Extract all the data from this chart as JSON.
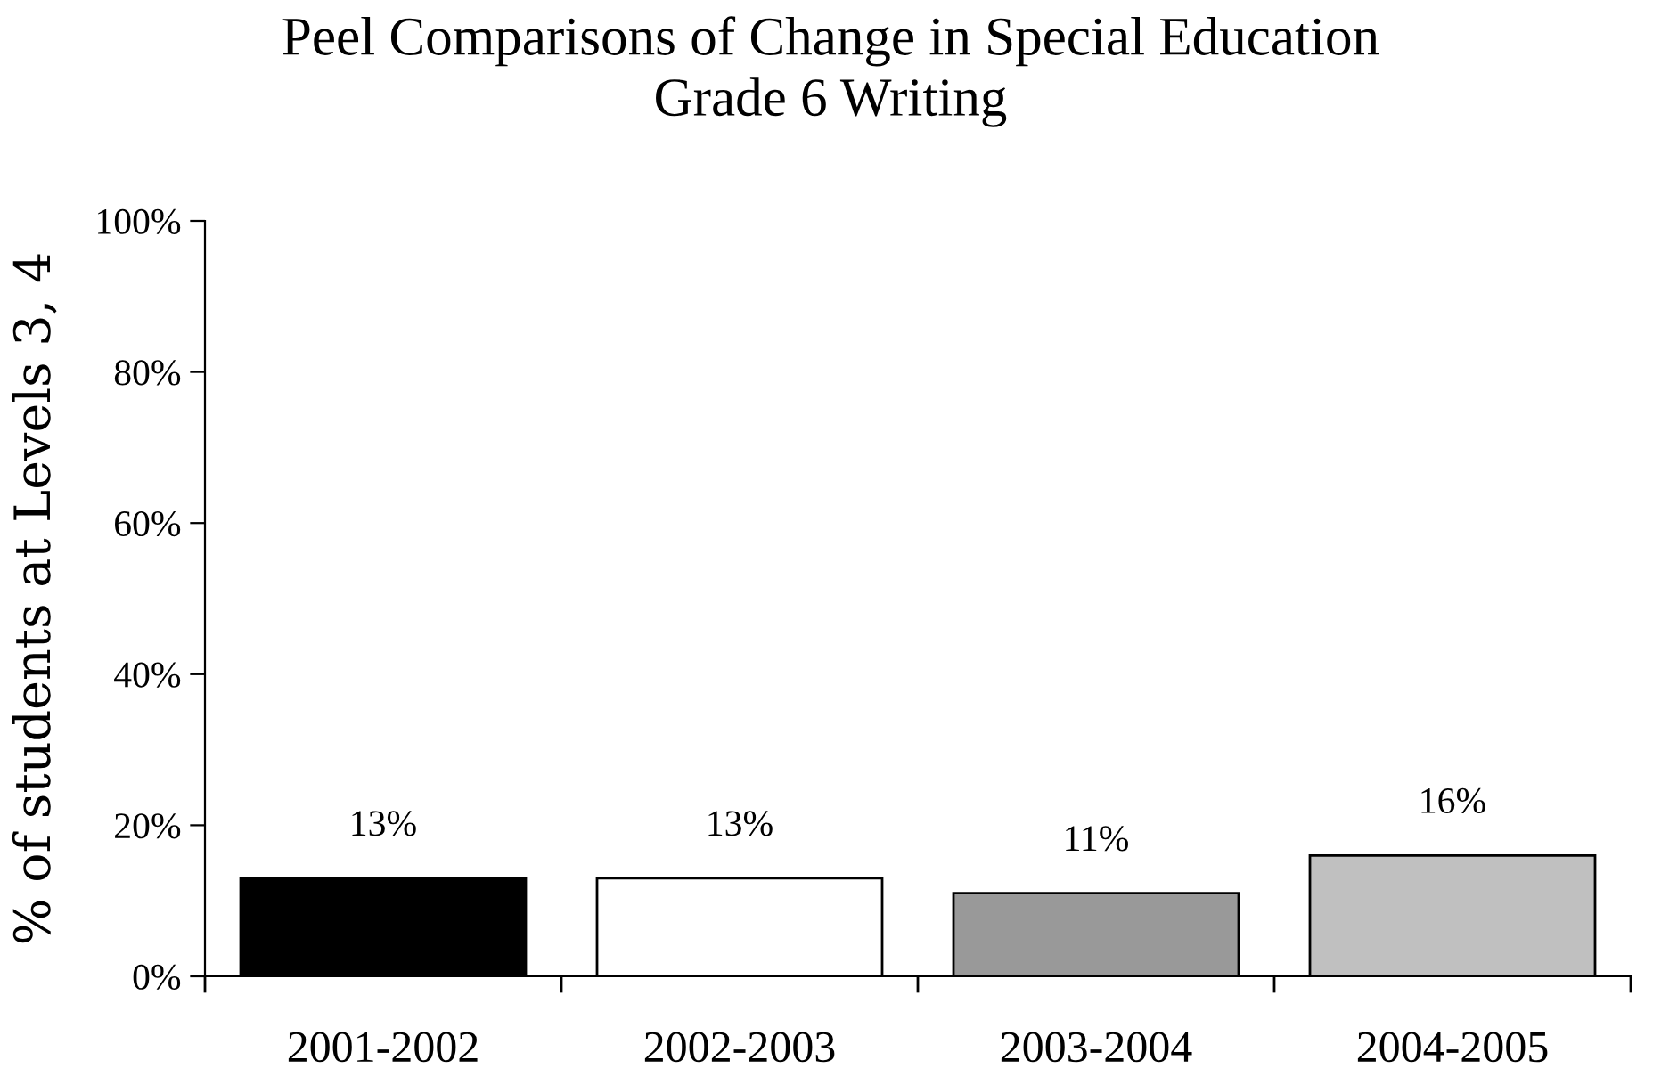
{
  "chart_data": {
    "type": "bar",
    "title": "Peel Comparisons of Change in Special Education\nGrade 6 Writing",
    "ylabel": "% of students at Levels 3, 4",
    "categories": [
      "2001-2002",
      "2002-2003",
      "2003-2004",
      "2004-2005"
    ],
    "values": [
      13,
      13,
      11,
      16
    ],
    "colors": [
      "#000000",
      "#ffffff",
      "#999999",
      "#c0c0c0"
    ],
    "value_labels": [
      "13%",
      "13%",
      "11%",
      "16%"
    ],
    "ylim": [
      0,
      100
    ],
    "yticks": [
      {
        "value": 0,
        "label": "0%"
      },
      {
        "value": 20,
        "label": "20%"
      },
      {
        "value": 40,
        "label": "40%"
      },
      {
        "value": 60,
        "label": "60%"
      },
      {
        "value": 80,
        "label": "80%"
      },
      {
        "value": 100,
        "label": "100%"
      }
    ],
    "grid": false
  }
}
